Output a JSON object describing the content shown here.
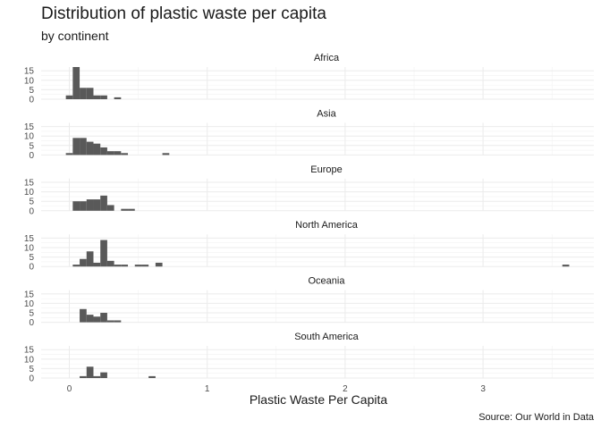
{
  "chart_data": {
    "type": "histogram",
    "title": "Distribution of plastic waste per capita",
    "subtitle": "by continent",
    "xlabel": "Plastic Waste Per Capita",
    "ylabel": "",
    "caption": "Source: Our World in Data",
    "xlim": [
      -0.2,
      3.8
    ],
    "ylim": [
      0,
      17
    ],
    "x_ticks": [
      0,
      1,
      2,
      3
    ],
    "y_ticks": [
      0,
      5,
      10,
      15
    ],
    "grid": true,
    "bin_width": 0.05,
    "bar_color": "#595959",
    "facets": [
      {
        "name": "Africa",
        "bins": [
          {
            "x": 0.0,
            "count": 2
          },
          {
            "x": 0.05,
            "count": 17
          },
          {
            "x": 0.1,
            "count": 6
          },
          {
            "x": 0.15,
            "count": 6
          },
          {
            "x": 0.2,
            "count": 2
          },
          {
            "x": 0.25,
            "count": 2
          },
          {
            "x": 0.35,
            "count": 1
          }
        ]
      },
      {
        "name": "Asia",
        "bins": [
          {
            "x": 0.0,
            "count": 1
          },
          {
            "x": 0.05,
            "count": 9
          },
          {
            "x": 0.1,
            "count": 9
          },
          {
            "x": 0.15,
            "count": 7
          },
          {
            "x": 0.2,
            "count": 6
          },
          {
            "x": 0.25,
            "count": 4
          },
          {
            "x": 0.3,
            "count": 2
          },
          {
            "x": 0.35,
            "count": 2
          },
          {
            "x": 0.4,
            "count": 1
          },
          {
            "x": 0.7,
            "count": 1
          }
        ]
      },
      {
        "name": "Europe",
        "bins": [
          {
            "x": 0.05,
            "count": 5
          },
          {
            "x": 0.1,
            "count": 5
          },
          {
            "x": 0.15,
            "count": 6
          },
          {
            "x": 0.2,
            "count": 6
          },
          {
            "x": 0.25,
            "count": 8
          },
          {
            "x": 0.3,
            "count": 3
          },
          {
            "x": 0.4,
            "count": 1
          },
          {
            "x": 0.45,
            "count": 1
          }
        ]
      },
      {
        "name": "North America",
        "bins": [
          {
            "x": 0.05,
            "count": 1
          },
          {
            "x": 0.1,
            "count": 4
          },
          {
            "x": 0.15,
            "count": 8
          },
          {
            "x": 0.2,
            "count": 2
          },
          {
            "x": 0.25,
            "count": 14
          },
          {
            "x": 0.3,
            "count": 3
          },
          {
            "x": 0.35,
            "count": 1
          },
          {
            "x": 0.4,
            "count": 1
          },
          {
            "x": 0.5,
            "count": 1
          },
          {
            "x": 0.55,
            "count": 1
          },
          {
            "x": 0.65,
            "count": 2
          },
          {
            "x": 3.6,
            "count": 1
          }
        ]
      },
      {
        "name": "Oceania",
        "bins": [
          {
            "x": 0.1,
            "count": 7
          },
          {
            "x": 0.15,
            "count": 4
          },
          {
            "x": 0.2,
            "count": 3
          },
          {
            "x": 0.25,
            "count": 5
          },
          {
            "x": 0.3,
            "count": 1
          },
          {
            "x": 0.35,
            "count": 1
          }
        ]
      },
      {
        "name": "South America",
        "bins": [
          {
            "x": 0.1,
            "count": 1
          },
          {
            "x": 0.15,
            "count": 6
          },
          {
            "x": 0.2,
            "count": 1
          },
          {
            "x": 0.25,
            "count": 3
          },
          {
            "x": 0.6,
            "count": 1
          }
        ]
      }
    ]
  }
}
